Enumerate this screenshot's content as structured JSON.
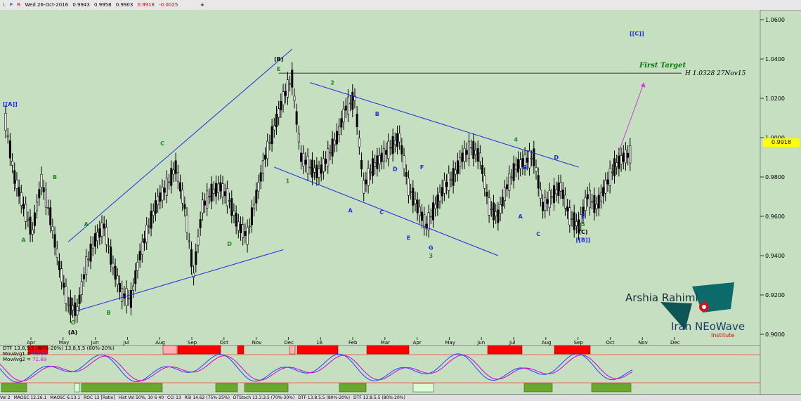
{
  "toolbar": {
    "flags": [
      "L",
      "F",
      "R"
    ],
    "date": "Wed 26-Oct-2016",
    "open": "0.9943",
    "high": "0.9958",
    "low": "0.9903",
    "close": "0.9918",
    "change": "-0.0025",
    "plus": "+"
  },
  "tabs": [
    "Vol 2",
    "MAOSC 12.26.1",
    "MAOSC 6.13.1",
    "ROC 12 [Ratio]",
    "Hist Vol 50%, 10 6 40",
    "CCI 13",
    "RSI 14.62 (75%-25%)",
    "DTStoch 13.3.3.5 (70%-30%)",
    "DTF 13.8.5.5 (80%-20%)",
    "DTF 13.8.5.5 (80%-20%)"
  ],
  "logo": {
    "name": "Arshia Rahimi",
    "brand": "Iran NEoWave",
    "sub": "Institute"
  },
  "colors": {
    "background": "#c6dfc0",
    "candle": "#000000",
    "trend": "#1c2fe0",
    "wave": "#1a8a1a",
    "target": "#d23bd6",
    "label_blue": "#1c2fe0",
    "highlight": "#ffff00"
  },
  "chart_data": {
    "type": "candlestick",
    "y_axis": {
      "ticks": [
        "0.9000",
        "0.9200",
        "0.9400",
        "0.9600",
        "0.9800",
        "1.0000",
        "1.0200",
        "1.0400",
        "1.0600"
      ],
      "range": [
        0.895,
        1.065
      ]
    },
    "x_axis": {
      "ticks": [
        "Apr",
        "May",
        "Jun",
        "Jul",
        "Aug",
        "Sep",
        "Oct",
        "Nov",
        "Dec",
        "16",
        "Feb",
        "Mar",
        "Apr",
        "May",
        "Jun",
        "Jul",
        "Aug",
        "Sep",
        "Oct",
        "Nov",
        "Dec"
      ]
    },
    "last_price": "0.9918",
    "price_series": [
      {
        "x": 0,
        "y": 1.008
      },
      {
        "x": 1,
        "y": 0.98
      },
      {
        "x": 2,
        "y": 0.965
      },
      {
        "x": 3,
        "y": 0.952
      },
      {
        "x": 4,
        "y": 0.978
      },
      {
        "x": 5,
        "y": 0.96
      },
      {
        "x": 6,
        "y": 0.935
      },
      {
        "x": 7,
        "y": 0.915
      },
      {
        "x": 8,
        "y": 0.912
      },
      {
        "x": 9,
        "y": 0.935
      },
      {
        "x": 10,
        "y": 0.948
      },
      {
        "x": 11,
        "y": 0.955
      },
      {
        "x": 12,
        "y": 0.935
      },
      {
        "x": 13,
        "y": 0.92
      },
      {
        "x": 14,
        "y": 0.918
      },
      {
        "x": 15,
        "y": 0.94
      },
      {
        "x": 16,
        "y": 0.955
      },
      {
        "x": 17,
        "y": 0.968
      },
      {
        "x": 18,
        "y": 0.975
      },
      {
        "x": 19,
        "y": 0.985
      },
      {
        "x": 20,
        "y": 0.965
      },
      {
        "x": 21,
        "y": 0.93
      },
      {
        "x": 22,
        "y": 0.965
      },
      {
        "x": 23,
        "y": 0.972
      },
      {
        "x": 24,
        "y": 0.975
      },
      {
        "x": 25,
        "y": 0.968
      },
      {
        "x": 26,
        "y": 0.955
      },
      {
        "x": 27,
        "y": 0.95
      },
      {
        "x": 28,
        "y": 0.97
      },
      {
        "x": 29,
        "y": 0.99
      },
      {
        "x": 30,
        "y": 1.005
      },
      {
        "x": 31,
        "y": 1.02
      },
      {
        "x": 32,
        "y": 1.03
      },
      {
        "x": 33,
        "y": 0.99
      },
      {
        "x": 34,
        "y": 0.985
      },
      {
        "x": 35,
        "y": 0.982
      },
      {
        "x": 36,
        "y": 0.99
      },
      {
        "x": 37,
        "y": 1.0
      },
      {
        "x": 38,
        "y": 1.015
      },
      {
        "x": 39,
        "y": 1.02
      },
      {
        "x": 40,
        "y": 0.975
      },
      {
        "x": 41,
        "y": 0.985
      },
      {
        "x": 42,
        "y": 0.99
      },
      {
        "x": 43,
        "y": 0.995
      },
      {
        "x": 44,
        "y": 1.0
      },
      {
        "x": 45,
        "y": 0.975
      },
      {
        "x": 46,
        "y": 0.965
      },
      {
        "x": 47,
        "y": 0.955
      },
      {
        "x": 48,
        "y": 0.965
      },
      {
        "x": 49,
        "y": 0.975
      },
      {
        "x": 50,
        "y": 0.98
      },
      {
        "x": 51,
        "y": 0.99
      },
      {
        "x": 52,
        "y": 0.995
      },
      {
        "x": 53,
        "y": 0.99
      },
      {
        "x": 54,
        "y": 0.965
      },
      {
        "x": 55,
        "y": 0.96
      },
      {
        "x": 56,
        "y": 0.975
      },
      {
        "x": 57,
        "y": 0.985
      },
      {
        "x": 58,
        "y": 0.988
      },
      {
        "x": 59,
        "y": 0.99
      },
      {
        "x": 60,
        "y": 0.965
      },
      {
        "x": 61,
        "y": 0.97
      },
      {
        "x": 62,
        "y": 0.975
      },
      {
        "x": 63,
        "y": 0.96
      },
      {
        "x": 64,
        "y": 0.955
      },
      {
        "x": 65,
        "y": 0.97
      },
      {
        "x": 66,
        "y": 0.965
      },
      {
        "x": 67,
        "y": 0.975
      },
      {
        "x": 68,
        "y": 0.985
      },
      {
        "x": 69,
        "y": 0.99
      },
      {
        "x": 70,
        "y": 0.992
      }
    ],
    "trendlines": [
      {
        "from": [
          7,
          0.947
        ],
        "to": [
          32,
          1.045
        ]
      },
      {
        "from": [
          8,
          0.912
        ],
        "to": [
          31,
          0.943
        ]
      },
      {
        "from": [
          34,
          1.028
        ],
        "to": [
          64,
          0.985
        ]
      },
      {
        "from": [
          30,
          0.985
        ],
        "to": [
          55,
          0.94
        ]
      }
    ],
    "target_line": {
      "y": 1.0328,
      "label": "H 1.0328 27Nov15",
      "title": "First Target"
    },
    "wave_labels": [
      {
        "text": "[[A]]",
        "x": 0.5,
        "y": 1.016,
        "color": "blue"
      },
      {
        "text": "A",
        "x": 2,
        "y": 0.947,
        "color": "green"
      },
      {
        "text": "B",
        "x": 5.5,
        "y": 0.979,
        "color": "green"
      },
      {
        "text": "C",
        "x": 7.5,
        "y": 0.905,
        "color": "green"
      },
      {
        "text": "(A)",
        "x": 7.5,
        "y": 0.9,
        "color": "black"
      },
      {
        "text": "A",
        "x": 9,
        "y": 0.955,
        "color": "green"
      },
      {
        "text": "B",
        "x": 11.5,
        "y": 0.91,
        "color": "green"
      },
      {
        "text": "C",
        "x": 17.5,
        "y": 0.996,
        "color": "green"
      },
      {
        "text": "D",
        "x": 25,
        "y": 0.945,
        "color": "green"
      },
      {
        "text": "(B)",
        "x": 30.5,
        "y": 1.039,
        "color": "black"
      },
      {
        "text": "E",
        "x": 30.5,
        "y": 1.034,
        "color": "green"
      },
      {
        "text": "1",
        "x": 31.5,
        "y": 0.977,
        "color": "green"
      },
      {
        "text": "2",
        "x": 36.5,
        "y": 1.027,
        "color": "green"
      },
      {
        "text": "A",
        "x": 38.5,
        "y": 0.962,
        "color": "blue"
      },
      {
        "text": "B",
        "x": 41.5,
        "y": 1.011,
        "color": "blue"
      },
      {
        "text": "C",
        "x": 42,
        "y": 0.961,
        "color": "blue"
      },
      {
        "text": "D",
        "x": 43.5,
        "y": 0.983,
        "color": "blue"
      },
      {
        "text": "E",
        "x": 45,
        "y": 0.948,
        "color": "blue"
      },
      {
        "text": "F",
        "x": 46.5,
        "y": 0.984,
        "color": "blue"
      },
      {
        "text": "G",
        "x": 47.5,
        "y": 0.943,
        "color": "blue"
      },
      {
        "text": "3",
        "x": 47.5,
        "y": 0.939,
        "color": "green"
      },
      {
        "text": "4",
        "x": 57,
        "y": 0.998,
        "color": "green"
      },
      {
        "text": "A",
        "x": 57.5,
        "y": 0.959,
        "color": "blue"
      },
      {
        "text": "B",
        "x": 58,
        "y": 0.984,
        "color": "blue"
      },
      {
        "text": "C",
        "x": 59.5,
        "y": 0.95,
        "color": "blue"
      },
      {
        "text": "D",
        "x": 61.5,
        "y": 0.989,
        "color": "blue"
      },
      {
        "text": "E",
        "x": 64.5,
        "y": 0.959,
        "color": "blue"
      },
      {
        "text": "5",
        "x": 64.5,
        "y": 0.955,
        "color": "green"
      },
      {
        "text": "(C)",
        "x": 64.5,
        "y": 0.951,
        "color": "black"
      },
      {
        "text": "[[B]]",
        "x": 64.5,
        "y": 0.947,
        "color": "blue"
      },
      {
        "text": "[[C]]",
        "x": 70.5,
        "y": 1.052,
        "color": "blue"
      }
    ]
  },
  "indicator": {
    "label": "DTF 13,8,5,5 (80%-20%)  13,8,5,5 (80%-20%)",
    "ma1_label": "MovAvg1",
    "ma1_value": "75.14",
    "ma2_label": "MovAvg2",
    "ma2_value": "71.69"
  }
}
